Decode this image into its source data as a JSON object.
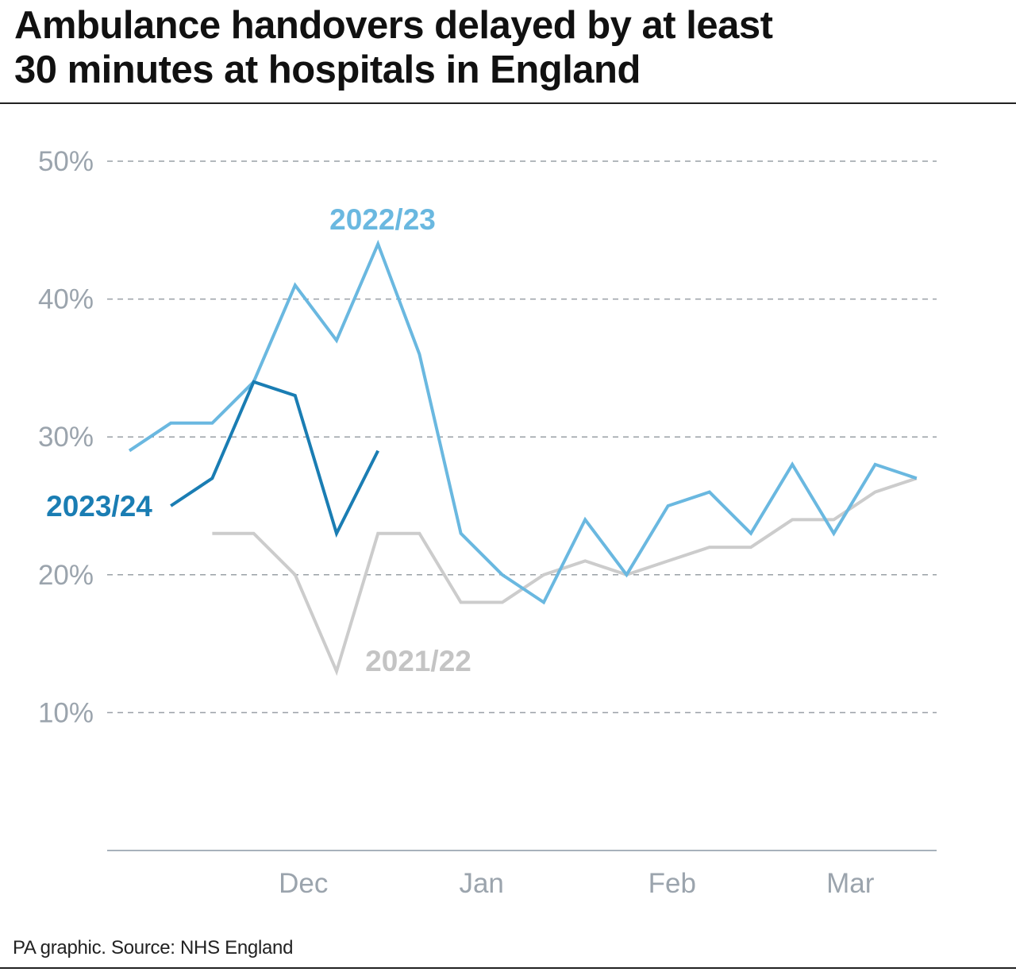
{
  "title_line1": "Ambulance handovers delayed by at least",
  "title_line2": "30 minutes at hospitals in England",
  "source": "PA graphic. Source: NHS England",
  "chart_data": {
    "type": "line",
    "title": "Ambulance handovers delayed by at least 30 minutes at hospitals in England",
    "y_ticks": [
      "10%",
      "20%",
      "30%",
      "40%",
      "50%"
    ],
    "y_tick_values": [
      10,
      20,
      30,
      40,
      50
    ],
    "ylim": [
      0,
      50
    ],
    "x_ticks": [
      "Dec",
      "Jan",
      "Feb",
      "Mar"
    ],
    "x_tick_weeks": [
      4.2,
      8.5,
      13.1,
      17.4
    ],
    "xlim": [
      -0.5,
      19.3
    ],
    "grid": true,
    "series": [
      {
        "name": "2021/22",
        "color": "#cccccc",
        "x": [
          2,
          3,
          4,
          5,
          6,
          7,
          8,
          9,
          10,
          11,
          12,
          13,
          14,
          15,
          16,
          17,
          18,
          19
        ],
        "values": [
          23,
          23,
          20,
          13,
          23,
          23,
          18,
          18,
          20,
          21,
          20,
          21,
          22,
          22,
          24,
          24,
          26,
          27
        ]
      },
      {
        "name": "2022/23",
        "color": "#6ab8e0",
        "x": [
          0,
          1,
          2,
          3,
          4,
          5,
          6,
          7,
          8,
          9,
          10,
          11,
          12,
          13,
          14,
          15,
          16,
          17,
          18,
          19
        ],
        "values": [
          29,
          31,
          31,
          34,
          41,
          37,
          44,
          36,
          23,
          20,
          18,
          24,
          20,
          25,
          26,
          23,
          28,
          23,
          28,
          27
        ]
      },
      {
        "name": "2023/24",
        "color": "#1a7db3",
        "x": [
          1,
          2,
          3,
          4,
          5,
          6
        ],
        "values": [
          25,
          27,
          34,
          33,
          23,
          29
        ]
      }
    ]
  }
}
